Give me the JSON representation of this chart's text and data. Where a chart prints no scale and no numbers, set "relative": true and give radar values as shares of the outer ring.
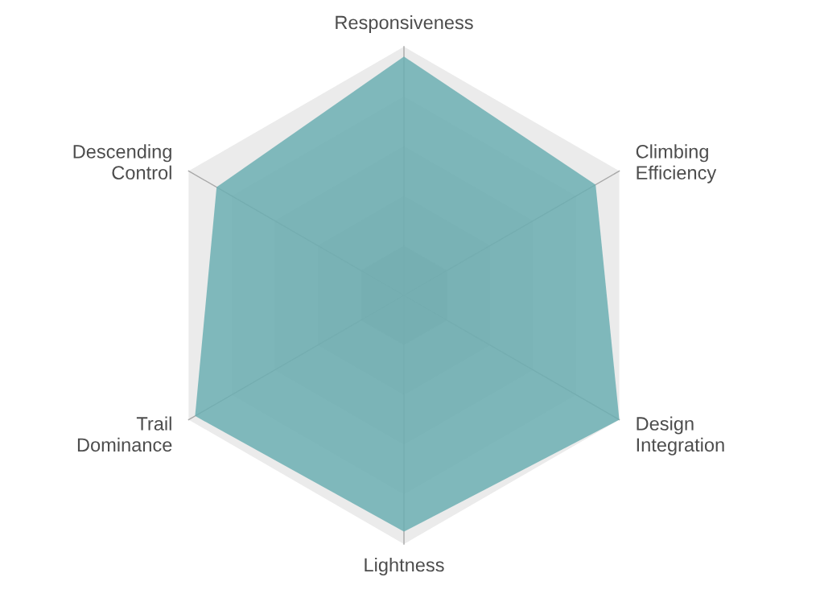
{
  "chart_data": {
    "type": "radar",
    "categories": [
      "Responsiveness",
      "Climbing\nEfficiency",
      "Design\nIntegration",
      "Lightness",
      "Trail\nDominance",
      "Descending\nControl"
    ],
    "relative": true,
    "grid": true,
    "series": [
      {
        "color": "#6aaeb2",
        "values": [
          0.96,
          0.89,
          1.0,
          0.95,
          0.97,
          0.87
        ]
      }
    ]
  }
}
